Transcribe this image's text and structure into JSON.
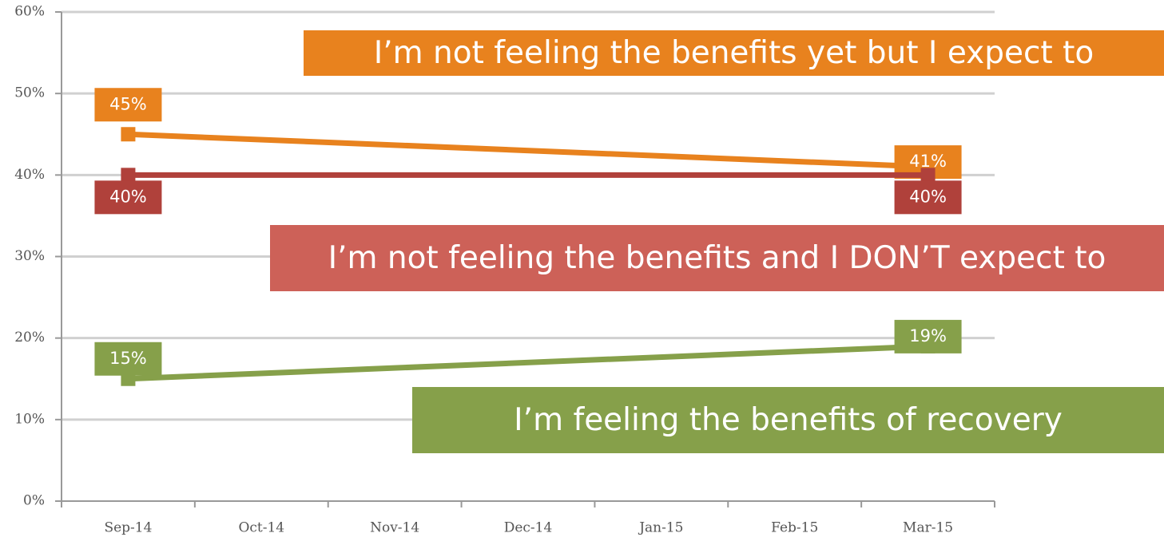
{
  "chart_data": {
    "type": "line",
    "categories": [
      "Sep-14",
      "Oct-14",
      "Nov-14",
      "Dec-14",
      "Jan-15",
      "Feb-15",
      "Mar-15"
    ],
    "x": [
      "Sep-14",
      "Mar-15"
    ],
    "ylim": [
      0,
      60
    ],
    "yticks": [
      {
        "value": 0,
        "label": "0%"
      },
      {
        "value": 10,
        "label": "10%"
      },
      {
        "value": 20,
        "label": "20%"
      },
      {
        "value": 30,
        "label": "30%"
      },
      {
        "value": 40,
        "label": "40%"
      },
      {
        "value": 50,
        "label": "50%"
      },
      {
        "value": 60,
        "label": "60%"
      }
    ],
    "grid": true,
    "series": [
      {
        "name": "I’m not feeling the benefits yet but I expect to",
        "color": "#e8821e",
        "values": [
          45,
          41
        ],
        "value_labels": [
          "45%",
          "41%"
        ]
      },
      {
        "name": "I’m not feeling the benefits and I DON’T expect to",
        "color": "#b0413b",
        "banner_color": "#cd6158",
        "values": [
          40,
          40
        ],
        "value_labels": [
          "40%",
          "40%"
        ]
      },
      {
        "name": "I’m feeling the benefits of recovery",
        "color": "#86a04a",
        "values": [
          15,
          19
        ],
        "value_labels": [
          "15%",
          "19%"
        ]
      }
    ]
  }
}
